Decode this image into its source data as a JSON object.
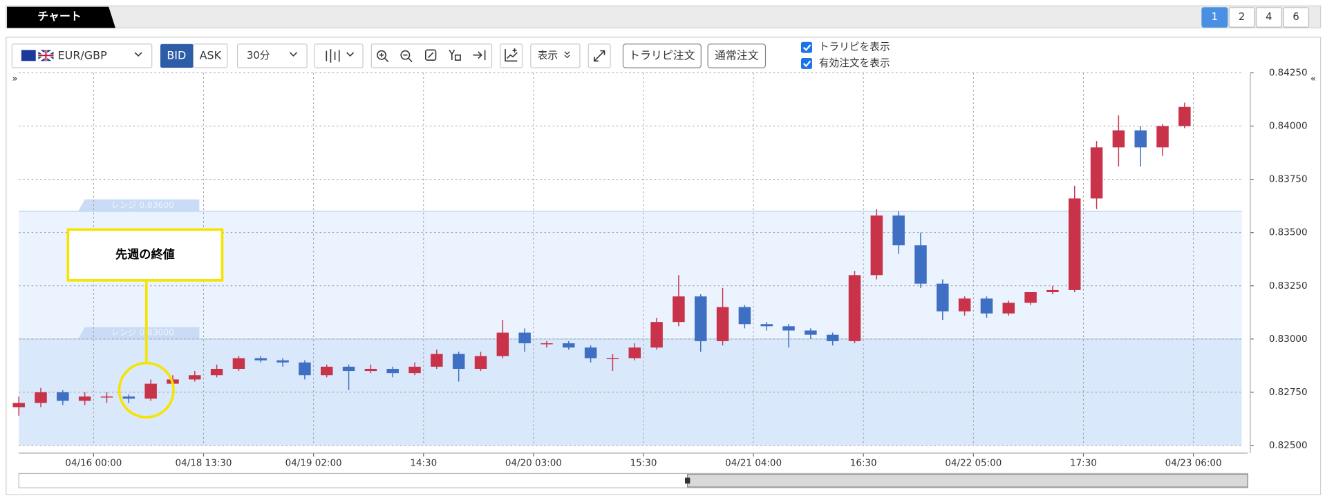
{
  "header": {
    "tab": "チャート",
    "layouts": [
      "1",
      "2",
      "4",
      "6"
    ]
  },
  "toolbar": {
    "symbol": "EUR/GBP",
    "bid": "BID",
    "ask": "ASK",
    "interval": "30分",
    "display": "表示",
    "trap_order": "トラリピ注文",
    "normal_order": "通常注文",
    "checks": [
      "トラリピを表示",
      "有効注文を表示"
    ],
    "expand_left": "»",
    "expand_right": "«"
  },
  "chart_data": {
    "type": "candlestick",
    "up_color": "#c8334a",
    "down_color": "#3f6fc2",
    "xlim": [
      -17,
      261
    ],
    "ylim": [
      0.825,
      0.8425
    ],
    "xticks": [
      {
        "value": 0,
        "label": "04/16 00:00"
      },
      {
        "value": 25,
        "label": "04/18 13:30"
      },
      {
        "value": 50,
        "label": "04/19 02:00"
      },
      {
        "value": 75,
        "label": "14:30"
      },
      {
        "value": 100,
        "label": "04/20 03:00"
      },
      {
        "value": 125,
        "label": "15:30"
      },
      {
        "value": 150,
        "label": "04/21 04:00"
      },
      {
        "value": 175,
        "label": "16:30"
      },
      {
        "value": 200,
        "label": "04/22 05:00"
      },
      {
        "value": 225,
        "label": "17:30"
      },
      {
        "value": 250,
        "label": "04/23 06:00"
      }
    ],
    "yticks": [
      {
        "value": 0.825,
        "label": "0.82500"
      },
      {
        "value": 0.8275,
        "label": "0.82750"
      },
      {
        "value": 0.83,
        "label": "0.83000"
      },
      {
        "value": 0.8325,
        "label": "0.83250"
      },
      {
        "value": 0.835,
        "label": "0.83500"
      },
      {
        "value": 0.8375,
        "label": "0.83750"
      },
      {
        "value": 0.84,
        "label": "0.84000"
      },
      {
        "value": 0.8425,
        "label": "0.84250"
      }
    ],
    "grid": true,
    "ranges": [
      {
        "label": "レンジ 0.83600",
        "value": 0.836
      },
      {
        "label": "レンジ 0.83000",
        "value": 0.83
      }
    ],
    "annotation": {
      "text": "先週の終値",
      "x": 12,
      "y": 0.8276
    },
    "x": [
      -17,
      -12,
      -7,
      -2,
      3,
      8,
      13,
      18,
      23,
      28,
      33,
      38,
      43,
      48,
      53,
      58,
      63,
      68,
      73,
      78,
      83,
      88,
      93,
      98,
      103,
      108,
      113,
      118,
      123,
      128,
      133,
      138,
      143,
      148,
      153,
      158,
      163,
      168,
      173,
      178,
      183,
      188,
      193,
      198,
      203,
      208,
      213,
      218,
      223,
      228,
      233,
      238,
      243,
      248
    ],
    "open": [
      0.8268,
      0.827,
      0.8275,
      0.8271,
      0.8273,
      0.8273,
      0.8272,
      0.8279,
      0.8281,
      0.8283,
      0.8286,
      0.8291,
      0.829,
      0.8289,
      0.8283,
      0.8287,
      0.8285,
      0.8286,
      0.8284,
      0.8287,
      0.8293,
      0.8286,
      0.8292,
      0.8303,
      0.8298,
      0.8298,
      0.8296,
      0.8291,
      0.8291,
      0.8296,
      0.8308,
      0.832,
      0.8299,
      0.8315,
      0.8307,
      0.8306,
      0.8304,
      0.8302,
      0.8299,
      0.833,
      0.8358,
      0.8344,
      0.8326,
      0.8313,
      0.8319,
      0.8312,
      0.8317,
      0.8322,
      0.8323,
      0.8366,
      0.839,
      0.8398,
      0.839,
      0.84
    ],
    "high": [
      0.8273,
      0.8277,
      0.8276,
      0.8275,
      0.8275,
      0.8274,
      0.8281,
      0.8283,
      0.8285,
      0.8288,
      0.8292,
      0.8292,
      0.8291,
      0.829,
      0.8288,
      0.8288,
      0.8288,
      0.8287,
      0.8289,
      0.8295,
      0.8294,
      0.8294,
      0.8309,
      0.8305,
      0.8299,
      0.8299,
      0.8297,
      0.8293,
      0.8298,
      0.831,
      0.833,
      0.8321,
      0.8324,
      0.8316,
      0.8308,
      0.8307,
      0.8305,
      0.8303,
      0.8332,
      0.8361,
      0.836,
      0.835,
      0.8328,
      0.832,
      0.832,
      0.8318,
      0.8322,
      0.8325,
      0.8372,
      0.8393,
      0.8405,
      0.84,
      0.8401,
      0.8411
    ],
    "low": [
      0.8264,
      0.8268,
      0.8269,
      0.8269,
      0.827,
      0.827,
      0.8271,
      0.8278,
      0.828,
      0.8282,
      0.8285,
      0.8289,
      0.8287,
      0.8281,
      0.8282,
      0.8276,
      0.8284,
      0.8282,
      0.8283,
      0.8286,
      0.828,
      0.8285,
      0.8291,
      0.8294,
      0.8296,
      0.8295,
      0.8289,
      0.8285,
      0.829,
      0.8295,
      0.8306,
      0.8294,
      0.8297,
      0.8305,
      0.8304,
      0.8296,
      0.83,
      0.8297,
      0.8298,
      0.8328,
      0.834,
      0.8324,
      0.8309,
      0.8311,
      0.831,
      0.8311,
      0.8316,
      0.8321,
      0.8322,
      0.8361,
      0.8381,
      0.8381,
      0.8386,
      0.8399
    ],
    "close": [
      0.827,
      0.8275,
      0.8271,
      0.8273,
      0.8273,
      0.8272,
      0.8279,
      0.8281,
      0.8283,
      0.8286,
      0.8291,
      0.829,
      0.8289,
      0.8283,
      0.8287,
      0.8285,
      0.8286,
      0.8284,
      0.8287,
      0.8293,
      0.8286,
      0.8292,
      0.8303,
      0.8298,
      0.8298,
      0.8296,
      0.8291,
      0.8291,
      0.8296,
      0.8308,
      0.832,
      0.8299,
      0.8315,
      0.8307,
      0.8306,
      0.8304,
      0.8302,
      0.8299,
      0.833,
      0.8358,
      0.8344,
      0.8326,
      0.8313,
      0.8319,
      0.8312,
      0.8317,
      0.8322,
      0.8323,
      0.8366,
      0.839,
      0.8398,
      0.839,
      0.84,
      0.8409
    ]
  }
}
